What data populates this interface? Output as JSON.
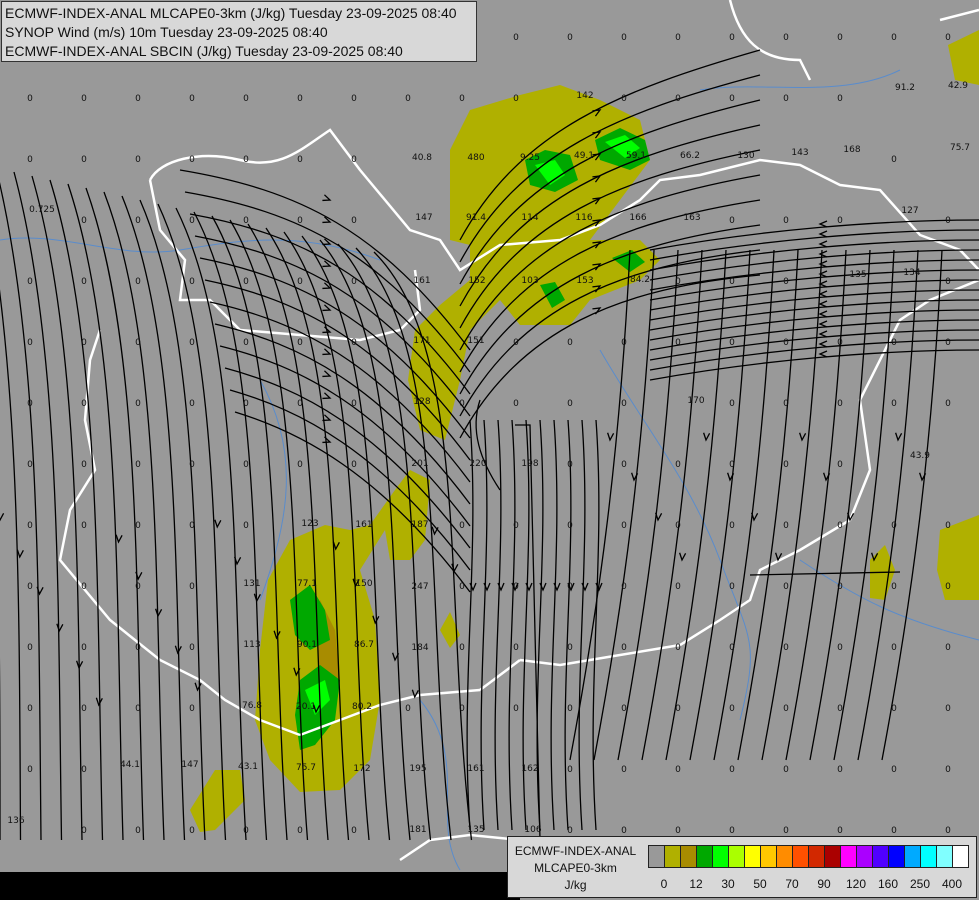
{
  "header": {
    "lines": [
      "ECMWF-INDEX-ANAL MLCAPE0-3km (J/kg) Tuesday 23-09-2025 08:40",
      "SYNOP Wind (m/s) 10m Tuesday 23-09-2025 08:40",
      "ECMWF-INDEX-ANAL SBCIN (J/kg) Tuesday 23-09-2025 08:40"
    ]
  },
  "legend": {
    "title_lines": [
      "ECMWF-INDEX-ANAL",
      "MLCAPE0-3km",
      "J/kg"
    ],
    "colors": [
      "#999999",
      "#b0b000",
      "#a88c00",
      "#00a800",
      "#00ff00",
      "#aaff00",
      "#ffff00",
      "#ffc800",
      "#ff8c00",
      "#ff5000",
      "#d22800",
      "#aa0000",
      "#ff00ff",
      "#aa00ff",
      "#5000ff",
      "#0000ff",
      "#00aaff",
      "#00ffff",
      "#80ffff",
      "#ffffff"
    ],
    "ticks": [
      "0",
      "12",
      "30",
      "50",
      "70",
      "90",
      "120",
      "160",
      "250",
      "400"
    ]
  },
  "map": {
    "background": "#999999",
    "border_color": "#ffffff",
    "river_color": "#5a8ccc",
    "streamline_color": "#000000",
    "zero_label": "0",
    "sbcin_labels": [
      "142",
      "40.8",
      "480",
      "9.25",
      "49.1",
      "59.1",
      "66.2",
      "130",
      "143",
      "168",
      "91.2",
      "42.9",
      "75.7",
      "0.725",
      "147",
      "91.4",
      "114",
      "116",
      "166",
      "163",
      "127",
      "161",
      "152",
      "103",
      "153",
      "84.2",
      "135",
      "134",
      "171",
      "151",
      "128",
      "170",
      "201",
      "220",
      "198",
      "43.9",
      "123",
      "161",
      "187",
      "131",
      "77.1",
      "150",
      "247",
      "113",
      "90.1",
      "86.7",
      "184",
      "76.8",
      "20.1",
      "80.2",
      "44.1",
      "147",
      "43.1",
      "75.7",
      "172",
      "195",
      "161",
      "162",
      "136",
      "181",
      "135",
      "106"
    ]
  }
}
